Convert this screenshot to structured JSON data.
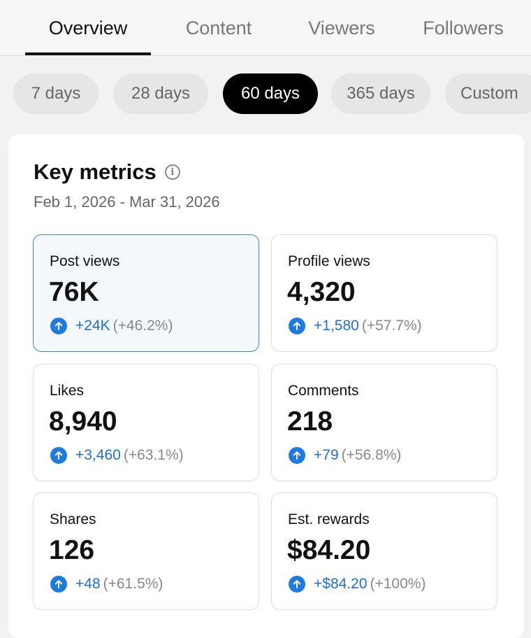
{
  "tabs": [
    {
      "label": "Overview",
      "active": true
    },
    {
      "label": "Content",
      "active": false
    },
    {
      "label": "Viewers",
      "active": false
    },
    {
      "label": "Followers",
      "active": false
    }
  ],
  "ranges": [
    {
      "label": "7 days",
      "selected": false
    },
    {
      "label": "28 days",
      "selected": false
    },
    {
      "label": "60 days",
      "selected": true
    },
    {
      "label": "365 days",
      "selected": false
    },
    {
      "label": "Custom",
      "selected": false
    }
  ],
  "key_metrics": {
    "title": "Key metrics",
    "info_icon": "info-icon",
    "date_range": "Feb 1, 2026 - Mar 31, 2026",
    "metrics": [
      {
        "label": "Post views",
        "value": "76K",
        "delta": "+24K",
        "pct": "(+46.2%)",
        "highlighted": true
      },
      {
        "label": "Profile views",
        "value": "4,320",
        "delta": "+1,580",
        "pct": "(+57.7%)",
        "highlighted": false
      },
      {
        "label": "Likes",
        "value": "8,940",
        "delta": "+3,460",
        "pct": "(+63.1%)",
        "highlighted": false
      },
      {
        "label": "Comments",
        "value": "218",
        "delta": "+79",
        "pct": "(+56.8%)",
        "highlighted": false
      },
      {
        "label": "Shares",
        "value": "126",
        "delta": "+48",
        "pct": "(+61.5%)",
        "highlighted": false
      },
      {
        "label": "Est. rewards",
        "value": "$84.20",
        "delta": "+$84.20",
        "pct": "(+100%)",
        "highlighted": false
      }
    ]
  },
  "colors": {
    "accent_blue": "#1e7ae0",
    "highlight_border": "#3d86d9",
    "highlight_bg": "#f3f8fd"
  }
}
